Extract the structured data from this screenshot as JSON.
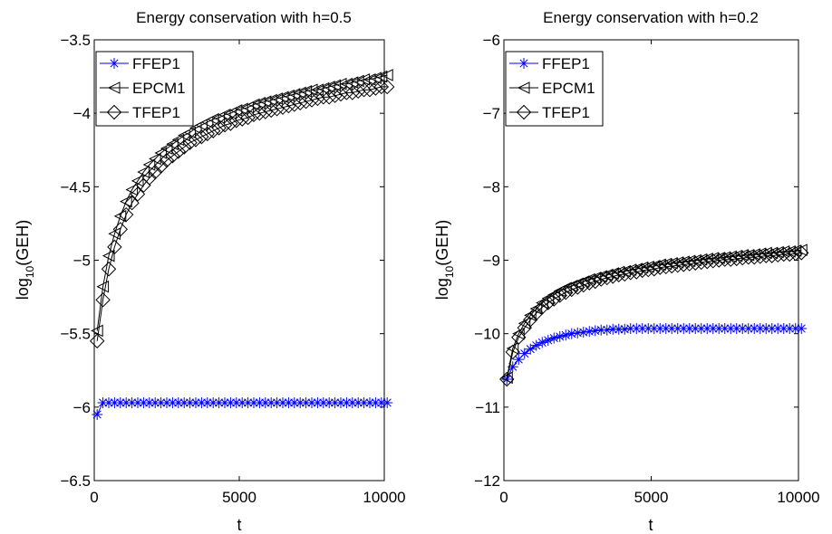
{
  "chart_data": [
    {
      "type": "line",
      "title": "Energy conservation with h=0.5",
      "xlabel": "t",
      "ylabel_base": "log",
      "ylabel_sub": "10",
      "ylabel_rest": "(GEH)",
      "xlim": [
        0,
        10000
      ],
      "ylim": [
        -6.5,
        -3.5
      ],
      "xticks": [
        0,
        5000,
        10000
      ],
      "xtick_labels": [
        "0",
        "5000",
        "10000"
      ],
      "yticks": [
        -6.5,
        -6,
        -5.5,
        -5,
        -4.5,
        -4,
        -3.5
      ],
      "ytick_labels": [
        "−6.5",
        "−6",
        "−5.5",
        "−5",
        "−4.5",
        "−4",
        "−3.5"
      ],
      "legend_position": "top-left",
      "grid": false,
      "series": [
        {
          "name": "FFEP1",
          "color": "#0000ff",
          "marker": "asterisk",
          "x": [
            100,
            300,
            500,
            700,
            900,
            1100,
            1300,
            1500,
            1700,
            1900,
            2100,
            2300,
            2500,
            2700,
            2900,
            3100,
            3300,
            3500,
            3700,
            3900,
            4100,
            4300,
            4500,
            4700,
            4900,
            5100,
            5300,
            5500,
            5700,
            5900,
            6100,
            6300,
            6500,
            6700,
            6900,
            7100,
            7300,
            7500,
            7700,
            7900,
            8100,
            8300,
            8500,
            8700,
            8900,
            9100,
            9300,
            9500,
            9700,
            9900,
            10100
          ],
          "y": [
            -6.05,
            -5.97,
            -5.97,
            -5.97,
            -5.97,
            -5.97,
            -5.97,
            -5.97,
            -5.97,
            -5.97,
            -5.97,
            -5.97,
            -5.97,
            -5.97,
            -5.97,
            -5.97,
            -5.97,
            -5.97,
            -5.97,
            -5.97,
            -5.97,
            -5.97,
            -5.97,
            -5.97,
            -5.97,
            -5.97,
            -5.97,
            -5.97,
            -5.97,
            -5.97,
            -5.97,
            -5.97,
            -5.97,
            -5.97,
            -5.97,
            -5.97,
            -5.97,
            -5.97,
            -5.97,
            -5.97,
            -5.97,
            -5.97,
            -5.97,
            -5.97,
            -5.97,
            -5.97,
            -5.97,
            -5.97,
            -5.97,
            -5.97,
            -5.97
          ]
        },
        {
          "name": "EPCM1",
          "color": "#000000",
          "marker": "triangle-left",
          "x": [
            100,
            300,
            500,
            700,
            900,
            1100,
            1300,
            1500,
            1700,
            1900,
            2100,
            2300,
            2500,
            2700,
            2900,
            3100,
            3300,
            3500,
            3700,
            3900,
            4100,
            4300,
            4500,
            4700,
            4900,
            5100,
            5300,
            5500,
            5700,
            5900,
            6100,
            6300,
            6500,
            6700,
            6900,
            7100,
            7300,
            7500,
            7700,
            7900,
            8100,
            8300,
            8500,
            8700,
            8900,
            9100,
            9300,
            9500,
            9700,
            9900,
            10100
          ],
          "y": [
            -5.48,
            -5.18,
            -4.97,
            -4.82,
            -4.7,
            -4.6,
            -4.52,
            -4.46,
            -4.4,
            -4.35,
            -4.31,
            -4.27,
            -4.24,
            -4.21,
            -4.18,
            -4.15,
            -4.13,
            -4.1,
            -4.08,
            -4.06,
            -4.04,
            -4.03,
            -4.01,
            -4.0,
            -3.98,
            -3.97,
            -3.96,
            -3.94,
            -3.93,
            -3.92,
            -3.91,
            -3.9,
            -3.89,
            -3.88,
            -3.87,
            -3.86,
            -3.85,
            -3.84,
            -3.84,
            -3.83,
            -3.82,
            -3.81,
            -3.8,
            -3.8,
            -3.79,
            -3.78,
            -3.77,
            -3.77,
            -3.76,
            -3.75,
            -3.74
          ]
        },
        {
          "name": "TFEP1",
          "color": "#000000",
          "marker": "diamond",
          "x": [
            100,
            300,
            500,
            700,
            900,
            1100,
            1300,
            1500,
            1700,
            1900,
            2100,
            2300,
            2500,
            2700,
            2900,
            3100,
            3300,
            3500,
            3700,
            3900,
            4100,
            4300,
            4500,
            4700,
            4900,
            5100,
            5300,
            5500,
            5700,
            5900,
            6100,
            6300,
            6500,
            6700,
            6900,
            7100,
            7300,
            7500,
            7700,
            7900,
            8100,
            8300,
            8500,
            8700,
            8900,
            9100,
            9300,
            9500,
            9700,
            9900,
            10100
          ],
          "y": [
            -5.55,
            -5.27,
            -5.06,
            -4.91,
            -4.79,
            -4.69,
            -4.61,
            -4.55,
            -4.49,
            -4.44,
            -4.4,
            -4.36,
            -4.32,
            -4.29,
            -4.26,
            -4.23,
            -4.2,
            -4.18,
            -4.16,
            -4.14,
            -4.12,
            -4.1,
            -4.08,
            -4.07,
            -4.05,
            -4.04,
            -4.03,
            -4.01,
            -4.0,
            -3.99,
            -3.98,
            -3.97,
            -3.96,
            -3.95,
            -3.94,
            -3.93,
            -3.92,
            -3.91,
            -3.9,
            -3.89,
            -3.89,
            -3.88,
            -3.87,
            -3.86,
            -3.86,
            -3.85,
            -3.84,
            -3.84,
            -3.83,
            -3.82,
            -3.82
          ]
        }
      ]
    },
    {
      "type": "line",
      "title": "Energy conservation with h=0.2",
      "xlabel": "t",
      "ylabel_base": "log",
      "ylabel_sub": "10",
      "ylabel_rest": "(GEH)",
      "xlim": [
        0,
        10000
      ],
      "ylim": [
        -12,
        -6
      ],
      "xticks": [
        0,
        5000,
        10000
      ],
      "xtick_labels": [
        "0",
        "5000",
        "10000"
      ],
      "yticks": [
        -12,
        -11,
        -10,
        -9,
        -8,
        -7,
        -6
      ],
      "ytick_labels": [
        "−12",
        "−11",
        "−10",
        "−9",
        "−8",
        "−7",
        "−6"
      ],
      "legend_position": "top-left",
      "grid": false,
      "series": [
        {
          "name": "FFEP1",
          "color": "#0000ff",
          "marker": "asterisk",
          "x": [
            100,
            300,
            500,
            700,
            900,
            1100,
            1300,
            1500,
            1700,
            1900,
            2100,
            2300,
            2500,
            2700,
            2900,
            3100,
            3300,
            3500,
            3700,
            3900,
            4100,
            4300,
            4500,
            4700,
            4900,
            5100,
            5300,
            5500,
            5700,
            5900,
            6100,
            6300,
            6500,
            6700,
            6900,
            7100,
            7300,
            7500,
            7700,
            7900,
            8100,
            8300,
            8500,
            8700,
            8900,
            9100,
            9300,
            9500,
            9700,
            9900,
            10100
          ],
          "y": [
            -10.62,
            -10.45,
            -10.35,
            -10.27,
            -10.21,
            -10.16,
            -10.12,
            -10.09,
            -10.06,
            -10.04,
            -10.02,
            -10.0,
            -9.99,
            -9.98,
            -9.97,
            -9.96,
            -9.95,
            -9.95,
            -9.94,
            -9.94,
            -9.94,
            -9.93,
            -9.93,
            -9.93,
            -9.93,
            -9.93,
            -9.93,
            -9.93,
            -9.93,
            -9.93,
            -9.93,
            -9.93,
            -9.93,
            -9.93,
            -9.93,
            -9.93,
            -9.93,
            -9.93,
            -9.93,
            -9.93,
            -9.93,
            -9.93,
            -9.93,
            -9.93,
            -9.93,
            -9.93,
            -9.93,
            -9.93,
            -9.93,
            -9.93,
            -9.93
          ]
        },
        {
          "name": "EPCM1",
          "color": "#000000",
          "marker": "triangle-left",
          "x": [
            100,
            300,
            500,
            700,
            900,
            1100,
            1300,
            1500,
            1700,
            1900,
            2100,
            2300,
            2500,
            2700,
            2900,
            3100,
            3300,
            3500,
            3700,
            3900,
            4100,
            4300,
            4500,
            4700,
            4900,
            5100,
            5300,
            5500,
            5700,
            5900,
            6100,
            6300,
            6500,
            6700,
            6900,
            7100,
            7300,
            7500,
            7700,
            7900,
            8100,
            8300,
            8500,
            8700,
            8900,
            9100,
            9300,
            9500,
            9700,
            9900,
            10100
          ],
          "y": [
            -10.6,
            -10.2,
            -10.0,
            -9.86,
            -9.75,
            -9.66,
            -9.58,
            -9.52,
            -9.47,
            -9.42,
            -9.38,
            -9.35,
            -9.32,
            -9.29,
            -9.26,
            -9.24,
            -9.22,
            -9.2,
            -9.18,
            -9.16,
            -9.15,
            -9.13,
            -9.12,
            -9.1,
            -9.09,
            -9.08,
            -9.06,
            -9.05,
            -9.04,
            -9.03,
            -9.02,
            -9.01,
            -9.0,
            -8.99,
            -8.98,
            -8.97,
            -8.97,
            -8.96,
            -8.95,
            -8.94,
            -8.93,
            -8.93,
            -8.92,
            -8.91,
            -8.9,
            -8.9,
            -8.89,
            -8.88,
            -8.88,
            -8.87,
            -8.86
          ]
        },
        {
          "name": "TFEP1",
          "color": "#000000",
          "marker": "diamond",
          "x": [
            100,
            300,
            500,
            700,
            900,
            1100,
            1300,
            1500,
            1700,
            1900,
            2100,
            2300,
            2500,
            2700,
            2900,
            3100,
            3300,
            3500,
            3700,
            3900,
            4100,
            4300,
            4500,
            4700,
            4900,
            5100,
            5300,
            5500,
            5700,
            5900,
            6100,
            6300,
            6500,
            6700,
            6900,
            7100,
            7300,
            7500,
            7700,
            7900,
            8100,
            8300,
            8500,
            8700,
            8900,
            9100,
            9300,
            9500,
            9700,
            9900,
            10100
          ],
          "y": [
            -10.62,
            -10.25,
            -10.05,
            -9.92,
            -9.81,
            -9.72,
            -9.64,
            -9.58,
            -9.53,
            -9.48,
            -9.44,
            -9.4,
            -9.37,
            -9.34,
            -9.31,
            -9.29,
            -9.26,
            -9.24,
            -9.22,
            -9.2,
            -9.19,
            -9.17,
            -9.16,
            -9.14,
            -9.13,
            -9.12,
            -9.1,
            -9.09,
            -9.08,
            -9.07,
            -9.06,
            -9.05,
            -9.04,
            -9.03,
            -9.02,
            -9.01,
            -9.0,
            -8.99,
            -8.99,
            -8.98,
            -8.97,
            -8.96,
            -8.96,
            -8.95,
            -8.94,
            -8.94,
            -8.93,
            -8.92,
            -8.92,
            -8.91,
            -8.9
          ]
        }
      ]
    }
  ]
}
